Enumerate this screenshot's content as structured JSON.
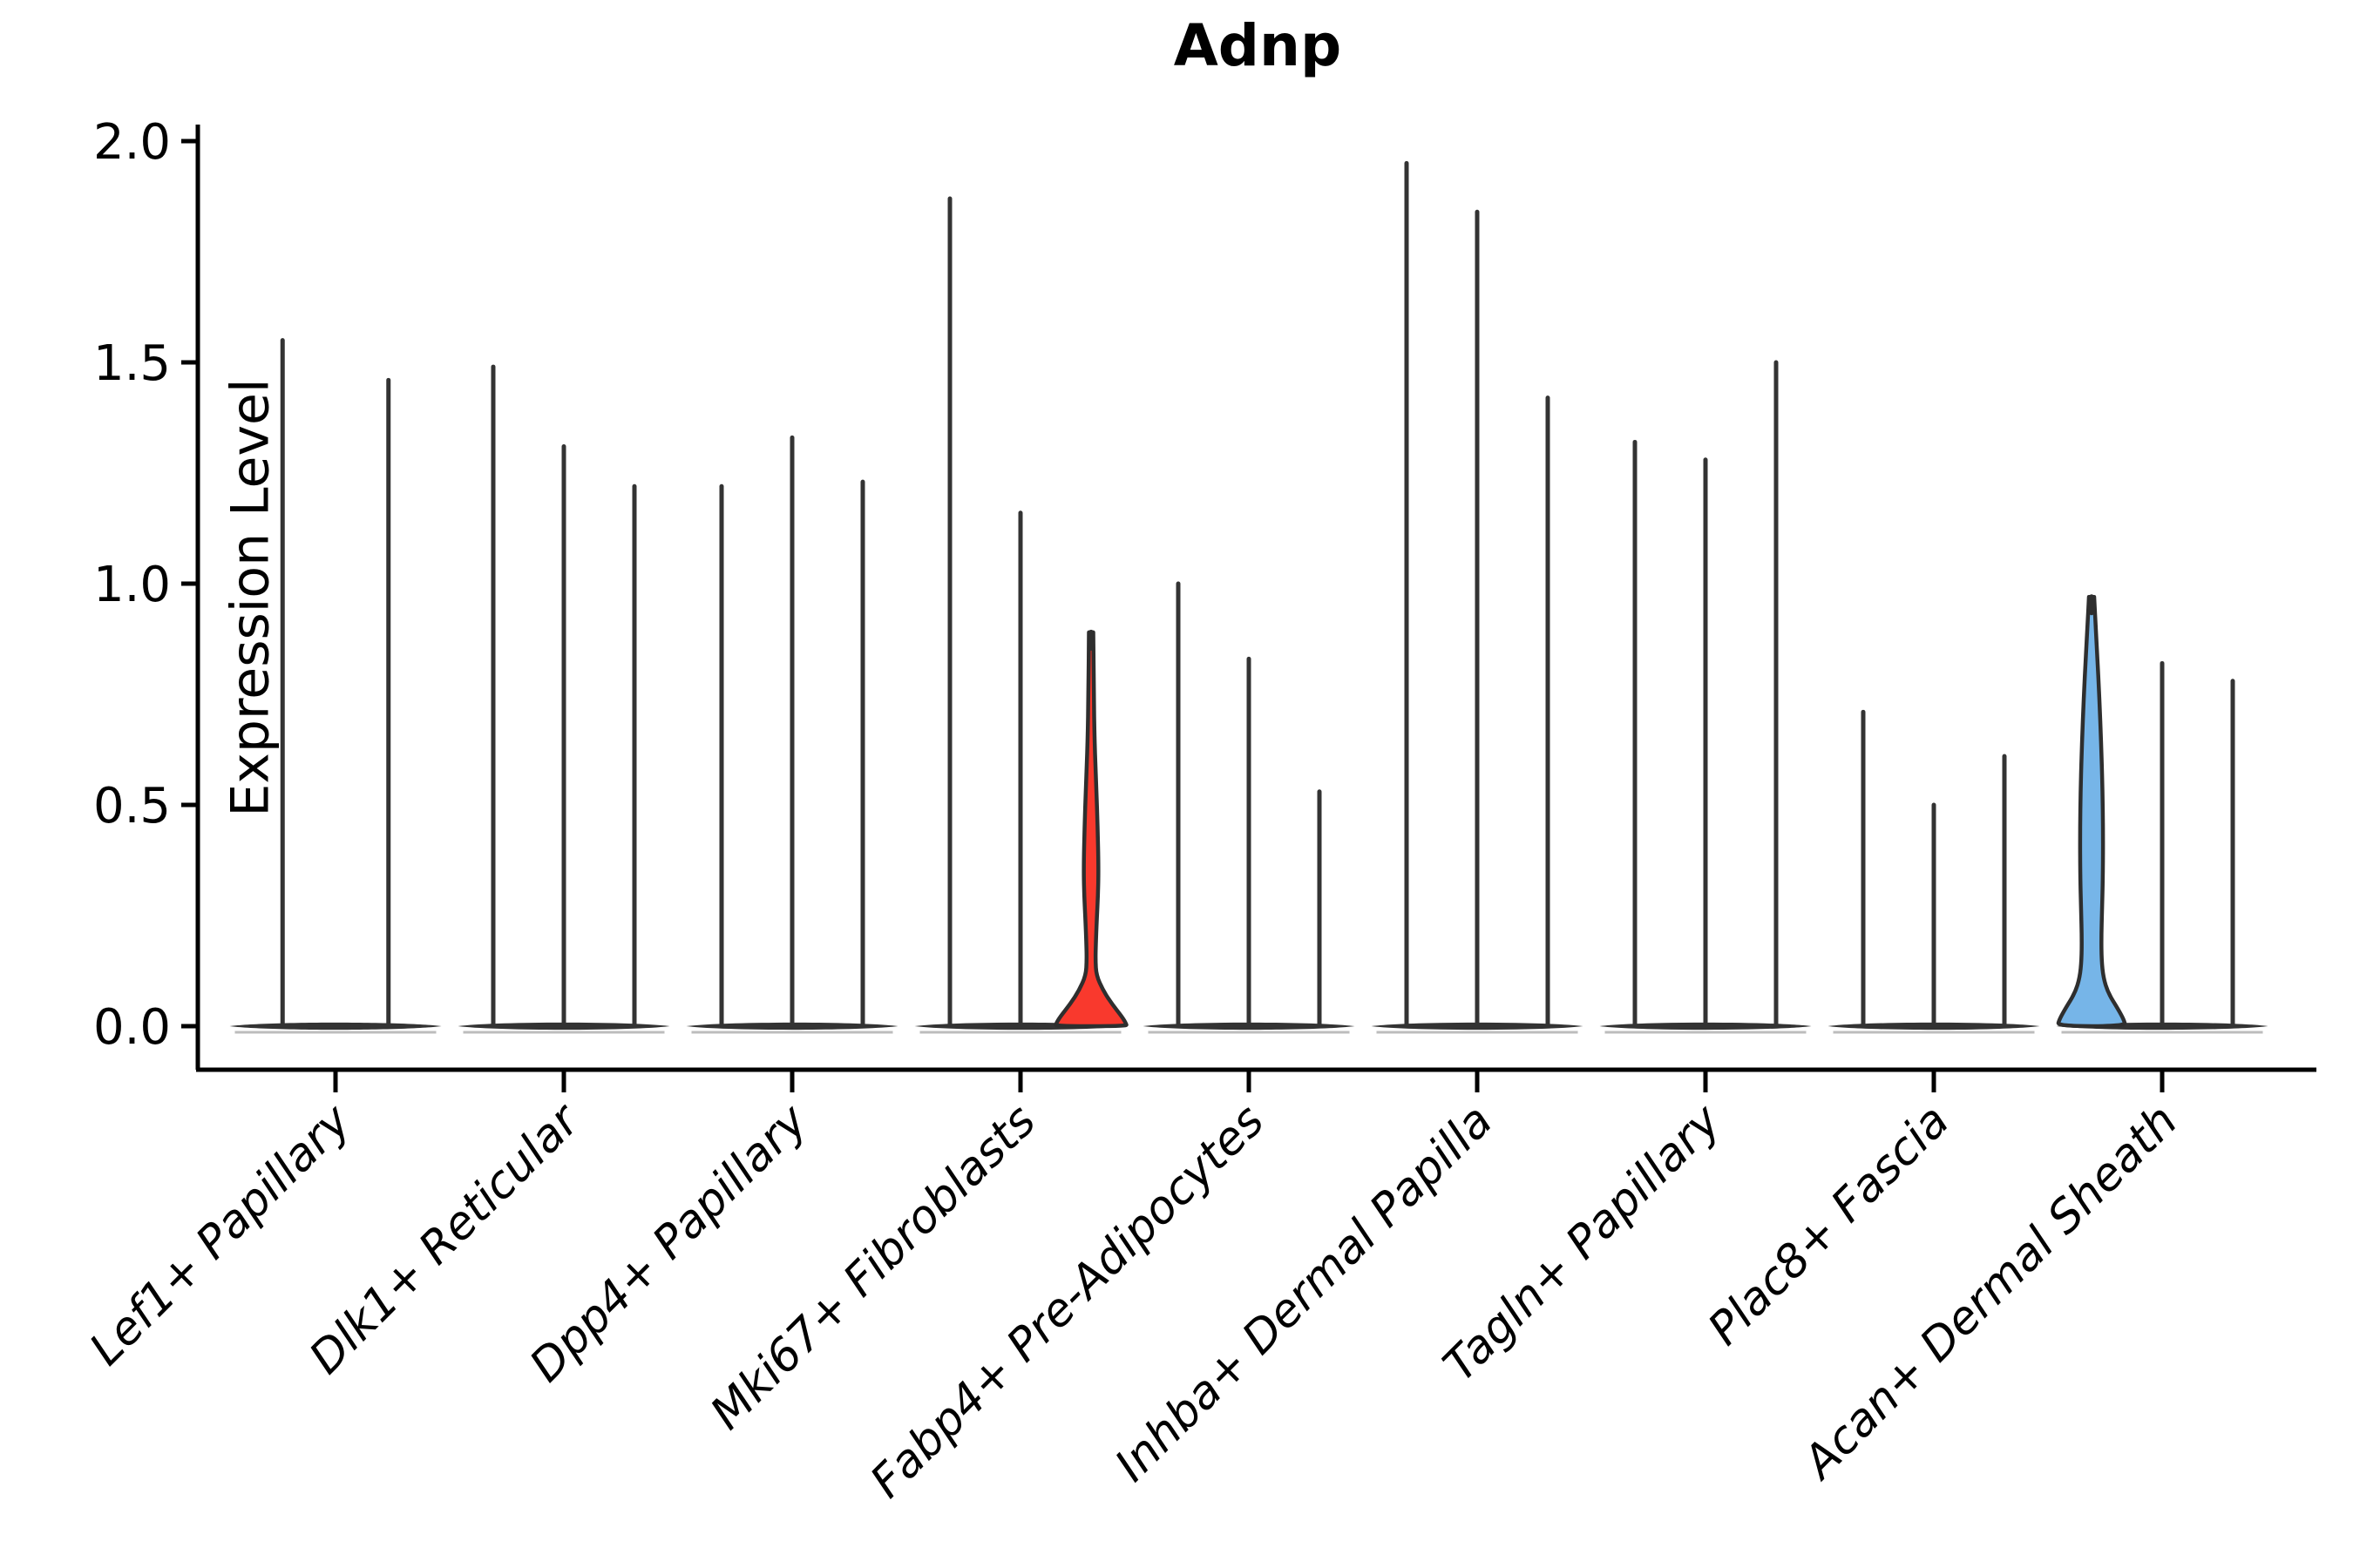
{
  "chart_data": {
    "type": "violin",
    "title": "Adnp",
    "xlabel": "",
    "ylabel": "Expression Level",
    "ylim": [
      0,
      2.0
    ],
    "ytick_values": [
      0.0,
      0.5,
      1.0,
      1.5,
      2.0
    ],
    "ytick_labels": [
      "0.0",
      "0.5",
      "1.0",
      "1.5",
      "2.0"
    ],
    "grid": "off",
    "legend": "none",
    "xtick_angle_deg": 45,
    "categories": [
      "Lef1+ Papillary",
      "Dlk1+ Reticular",
      "Dpp4+ Papillary",
      "Mki67+ Fibroblasts",
      "Fabp4+ Pre-Adipocytes",
      "Inhba+ Dermal Papilla",
      "Tagln+ Papillary",
      "Plac8+ Fascia",
      "Acan+ Dermal Sheath"
    ],
    "series": [
      {
        "category": "Lef1+ Papillary",
        "violins": [
          {
            "max": 1.55,
            "style": "spike"
          },
          {
            "max": 1.46,
            "style": "spike"
          }
        ]
      },
      {
        "category": "Dlk1+ Reticular",
        "violins": [
          {
            "max": 1.49,
            "style": "spike"
          },
          {
            "max": 1.31,
            "style": "spike"
          },
          {
            "max": 1.22,
            "style": "spike"
          }
        ]
      },
      {
        "category": "Dpp4+ Papillary",
        "violins": [
          {
            "max": 1.22,
            "style": "spike"
          },
          {
            "max": 1.33,
            "style": "spike"
          },
          {
            "max": 1.23,
            "style": "spike"
          }
        ]
      },
      {
        "category": "Mki67+ Fibroblasts",
        "violins": [
          {
            "max": 1.87,
            "style": "spike"
          },
          {
            "max": 1.16,
            "style": "spike"
          },
          {
            "max": 0.89,
            "style": "body",
            "profile": "red_profile",
            "fill": "#F9392D"
          }
        ]
      },
      {
        "category": "Fabp4+ Pre-Adipocytes",
        "violins": [
          {
            "max": 1.0,
            "style": "spike"
          },
          {
            "max": 0.83,
            "style": "spike"
          },
          {
            "max": 0.53,
            "style": "spike"
          }
        ]
      },
      {
        "category": "Inhba+ Dermal Papilla",
        "violins": [
          {
            "max": 1.95,
            "style": "spike"
          },
          {
            "max": 1.84,
            "style": "spike"
          },
          {
            "max": 1.42,
            "style": "spike"
          }
        ]
      },
      {
        "category": "Tagln+ Papillary",
        "violins": [
          {
            "max": 1.32,
            "style": "spike"
          },
          {
            "max": 1.28,
            "style": "spike"
          },
          {
            "max": 1.5,
            "style": "spike"
          }
        ]
      },
      {
        "category": "Plac8+ Fascia",
        "violins": [
          {
            "max": 0.71,
            "style": "spike"
          },
          {
            "max": 0.5,
            "style": "spike"
          },
          {
            "max": 0.61,
            "style": "spike"
          }
        ]
      },
      {
        "category": "Acan+ Dermal Sheath",
        "violins": [
          {
            "max": 0.97,
            "style": "body",
            "profile": "blue_profile",
            "fill": "#76B5E8"
          },
          {
            "max": 0.82,
            "style": "spike"
          },
          {
            "max": 0.78,
            "style": "spike"
          }
        ]
      }
    ],
    "highlighted_violins": [
      {
        "category": "Mki67+ Fibroblasts",
        "position": 3,
        "fill": "#F9392D"
      },
      {
        "category": "Acan+ Dermal Sheath",
        "position": 1,
        "fill": "#76B5E8"
      }
    ],
    "density_profiles": {
      "red_profile": [
        [
          0.89,
          2.5
        ],
        [
          0.76,
          3
        ],
        [
          0.64,
          4
        ],
        [
          0.54,
          6
        ],
        [
          0.45,
          7.5
        ],
        [
          0.36,
          8.5
        ],
        [
          0.3,
          8
        ],
        [
          0.24,
          6.5
        ],
        [
          0.19,
          5.5
        ],
        [
          0.15,
          5
        ],
        [
          0.115,
          6
        ],
        [
          0.08,
          14
        ],
        [
          0.05,
          24
        ],
        [
          0.02,
          36
        ],
        [
          0.006,
          40
        ],
        [
          0,
          41
        ]
      ],
      "blue_profile": [
        [
          0.97,
          3
        ],
        [
          0.91,
          4.5
        ],
        [
          0.84,
          6.5
        ],
        [
          0.74,
          9
        ],
        [
          0.64,
          11
        ],
        [
          0.54,
          12.5
        ],
        [
          0.44,
          13.2
        ],
        [
          0.34,
          13
        ],
        [
          0.26,
          12
        ],
        [
          0.2,
          11.2
        ],
        [
          0.15,
          11.5
        ],
        [
          0.11,
          13.5
        ],
        [
          0.075,
          19
        ],
        [
          0.04,
          30
        ],
        [
          0.015,
          37
        ],
        [
          0,
          39
        ]
      ]
    },
    "colors": {
      "spike": "#333333",
      "outline": "#2E2E2E",
      "baseline": "#333333",
      "baseline_shadow": "#ADADAD",
      "axis": "#000000",
      "text": "#000000",
      "red_fill": "#F9392D",
      "blue_fill": "#76B5E8",
      "background": "#FFFFFF"
    }
  }
}
